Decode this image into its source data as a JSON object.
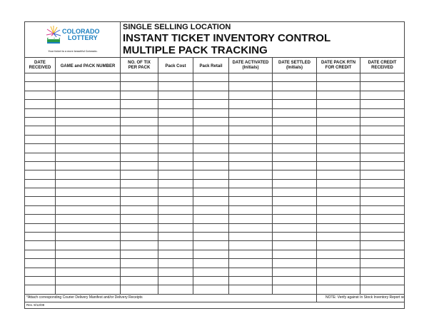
{
  "logo": {
    "line1": "COLORADO",
    "line2": "LOTTERY",
    "tagline": "Your ticket to a more beautiful Colorado."
  },
  "title": {
    "line1": "SINGLE SELLING LOCATION",
    "line2": "INSTANT TICKET INVENTORY CONTROL",
    "line3": "MULTIPLE PACK TRACKING"
  },
  "columns": [
    {
      "l1": "DATE",
      "l2": "RECEIVED"
    },
    {
      "l1": "",
      "l2": "GAME and PACK NUMBER"
    },
    {
      "l1": "NO. OF TIX",
      "l2": "PER PACK"
    },
    {
      "l1": "",
      "l2": "Pack Cost"
    },
    {
      "l1": "",
      "l2": "Pack Retail"
    },
    {
      "l1": "DATE ACTIVATED",
      "l2": "(Initials)"
    },
    {
      "l1": "DATE SETTLED",
      "l2": "(Initials)"
    },
    {
      "l1": "DATE PACK RTN",
      "l2": "FOR CREDIT"
    },
    {
      "l1": "DATE CREDIT",
      "l2": "RECEIVED"
    }
  ],
  "footer": {
    "left": "*Attach corresponding Courier Delivery Manifest and/or Delivery Receipts",
    "right": "NOTE:  Verify against In Stock Inventory Report weekly.",
    "rev": "Rev. 9/12/08"
  }
}
